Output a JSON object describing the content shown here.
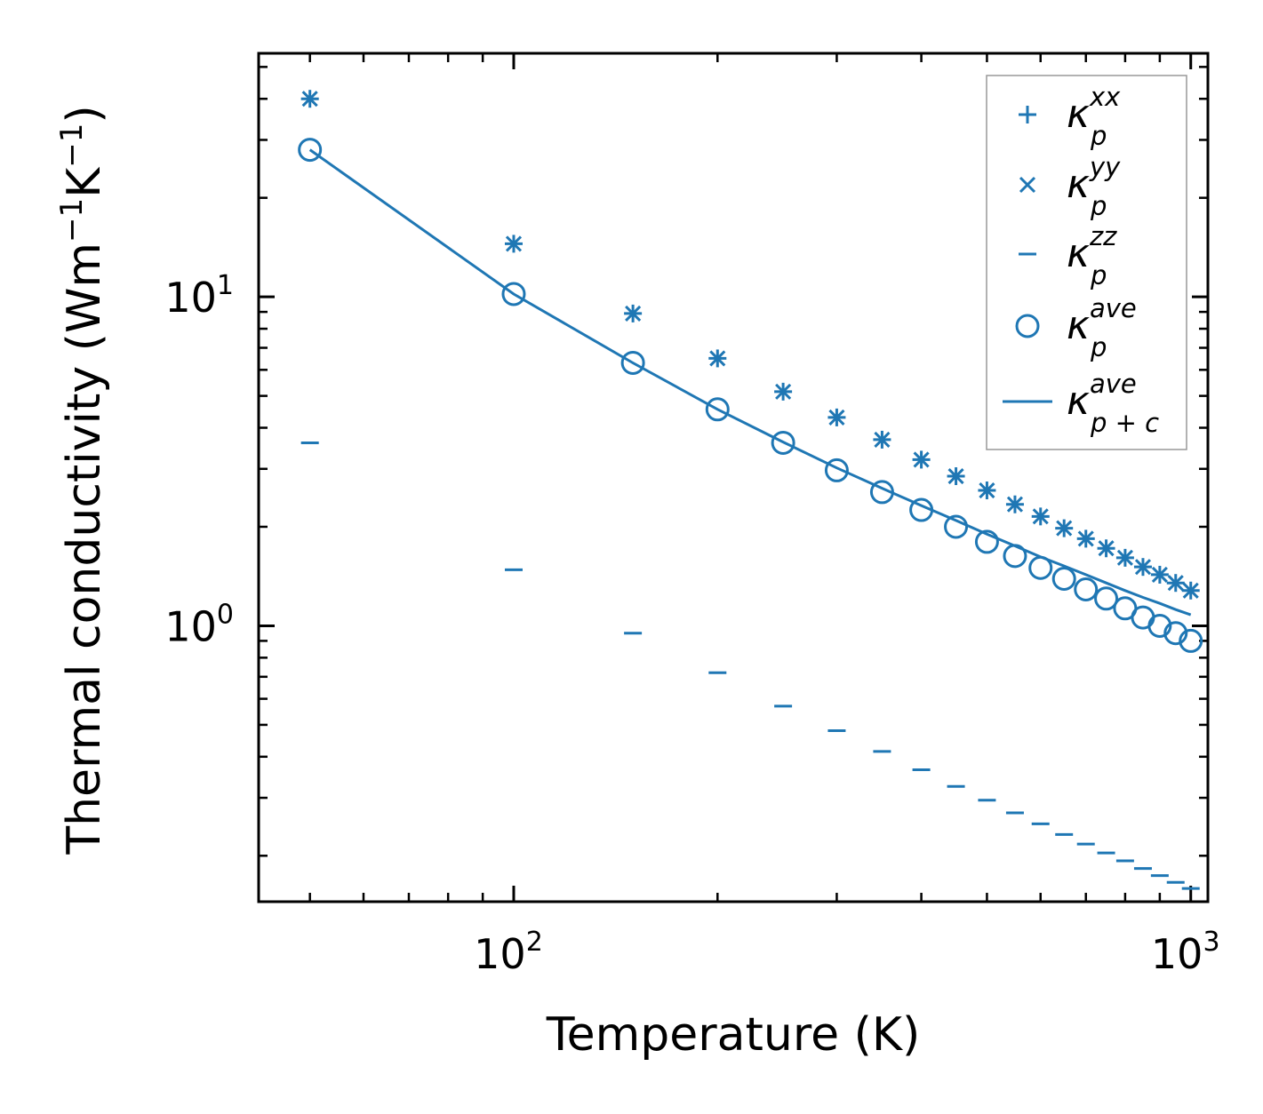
{
  "chart_data": {
    "type": "scatter",
    "xscale": "log",
    "yscale": "log",
    "xlim": [
      42,
      1060
    ],
    "ylim": [
      0.145,
      55
    ],
    "xlabel": "Temperature (K)",
    "ylabel": {
      "prefix": "Thermal conductivity (Wm",
      "sup1": "−1",
      "mid": "K",
      "sup2": "−1",
      "suffix": ")"
    },
    "x_ticks": [
      {
        "value": 100,
        "base": "10",
        "exp": "2"
      },
      {
        "value": 1000,
        "base": "10",
        "exp": "3"
      }
    ],
    "y_ticks": [
      {
        "value": 1,
        "base": "10",
        "exp": "0"
      },
      {
        "value": 10,
        "base": "10",
        "exp": "1"
      }
    ],
    "x": [
      50,
      100,
      150,
      200,
      250,
      300,
      350,
      400,
      450,
      500,
      550,
      600,
      650,
      700,
      750,
      800,
      850,
      900,
      950,
      1000
    ],
    "series": [
      {
        "name": "kappa_p^xx",
        "legend": {
          "base": "κ",
          "sup": "xx",
          "sub": "p"
        },
        "marker": "plus",
        "values": [
          40,
          14.5,
          8.9,
          6.5,
          5.15,
          4.3,
          3.68,
          3.2,
          2.85,
          2.58,
          2.34,
          2.15,
          1.98,
          1.84,
          1.72,
          1.61,
          1.51,
          1.43,
          1.35,
          1.28
        ]
      },
      {
        "name": "kappa_p^yy",
        "legend": {
          "base": "κ",
          "sup": "yy",
          "sub": "p"
        },
        "marker": "x",
        "values": [
          40,
          14.5,
          8.9,
          6.5,
          5.15,
          4.3,
          3.68,
          3.2,
          2.85,
          2.58,
          2.34,
          2.15,
          1.98,
          1.84,
          1.72,
          1.61,
          1.51,
          1.43,
          1.35,
          1.28
        ]
      },
      {
        "name": "kappa_p^zz",
        "legend": {
          "base": "κ",
          "sup": "zz",
          "sub": "p"
        },
        "marker": "hline",
        "values": [
          3.6,
          1.48,
          0.95,
          0.72,
          0.57,
          0.48,
          0.415,
          0.365,
          0.325,
          0.295,
          0.27,
          0.25,
          0.232,
          0.217,
          0.204,
          0.193,
          0.183,
          0.174,
          0.166,
          0.159
        ]
      },
      {
        "name": "kappa_p^ave",
        "legend": {
          "base": "κ",
          "sup": "ave",
          "sub": "p"
        },
        "marker": "circle",
        "values": [
          28,
          10.2,
          6.3,
          4.55,
          3.6,
          2.97,
          2.55,
          2.25,
          2.0,
          1.8,
          1.63,
          1.5,
          1.39,
          1.29,
          1.21,
          1.13,
          1.06,
          1.0,
          0.95,
          0.9
        ]
      },
      {
        "name": "kappa_p+c^ave",
        "legend": {
          "base": "κ",
          "sup": "ave",
          "sub": "p + c"
        },
        "marker": "line",
        "values": [
          28,
          10.2,
          6.3,
          4.55,
          3.62,
          3.02,
          2.62,
          2.32,
          2.09,
          1.9,
          1.75,
          1.62,
          1.52,
          1.43,
          1.35,
          1.28,
          1.22,
          1.17,
          1.12,
          1.08
        ]
      }
    ],
    "legend_position": "top-right",
    "grid": false,
    "color": "#1f77b4"
  }
}
